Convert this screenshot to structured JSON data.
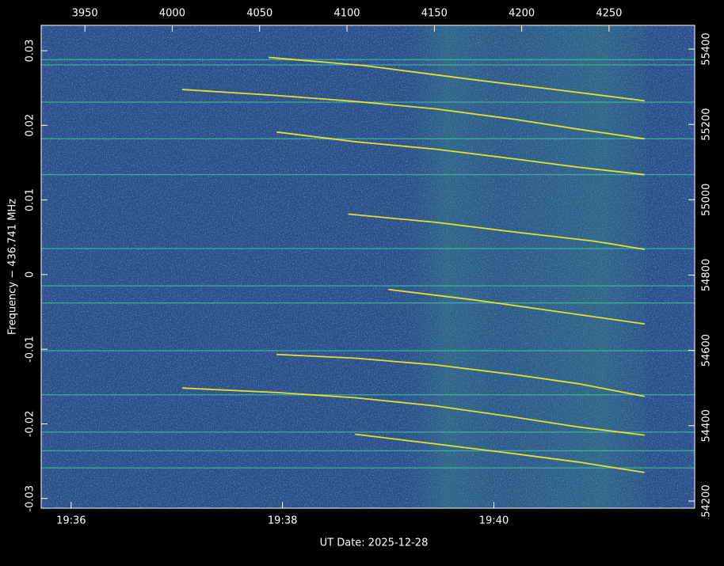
{
  "chart_data": {
    "type": "spectrogram",
    "x_label": "UT Date: 2025-12-28",
    "y_label": "Frequency − 436.741 MHz",
    "xlim": [
      70543,
      70914
    ],
    "xticks": [
      {
        "value": 70560,
        "label": "19:36"
      },
      {
        "value": 70680,
        "label": "19:38"
      },
      {
        "value": 70800,
        "label": "19:40"
      }
    ],
    "x2lim": [
      3925,
      4299
    ],
    "x2ticks": [
      3950,
      4000,
      4050,
      4100,
      4150,
      4200,
      4250
    ],
    "ylim": [
      -0.0313,
      0.0334
    ],
    "yticks": [
      -0.03,
      -0.02,
      -0.01,
      0,
      0.01,
      0.02,
      0.03
    ],
    "y2lim": [
      54181,
      55463
    ],
    "y2ticks": [
      54200,
      54400,
      54600,
      54800,
      55000,
      55200,
      55400
    ],
    "background_color": "#2b4c8a",
    "series": [
      {
        "color": "#f2ee28",
        "x_axis": "x2",
        "x": [
          4055.5,
          4110,
          4173,
          4219,
          4270
        ],
        "values": [
          0.0291,
          0.028,
          0.0261,
          0.0248,
          0.0233
        ]
      },
      {
        "color": "#f2ee28",
        "x_axis": "x2",
        "x": [
          4006,
          4060,
          4105,
          4151,
          4196,
          4232,
          4270
        ],
        "values": [
          0.0248,
          0.024,
          0.0232,
          0.0222,
          0.0208,
          0.0195,
          0.0182
        ]
      },
      {
        "color": "#f2ee28",
        "x_axis": "x2",
        "x": [
          4060,
          4105,
          4151,
          4196,
          4232,
          4270
        ],
        "values": [
          0.0191,
          0.0178,
          0.0168,
          0.0155,
          0.0144,
          0.0134
        ]
      },
      {
        "color": "#f2ee28",
        "x_axis": "x2",
        "x": [
          4101,
          4151,
          4196,
          4241,
          4270
        ],
        "values": [
          0.0081,
          0.007,
          0.0057,
          0.0045,
          0.0034
        ]
      },
      {
        "color": "#f2ee28",
        "x_axis": "x2",
        "x": [
          4124,
          4173,
          4219,
          4270
        ],
        "values": [
          -0.002,
          -0.0034,
          -0.0049,
          -0.0066
        ]
      },
      {
        "color": "#f2ee28",
        "x_axis": "x2",
        "x": [
          4060,
          4105,
          4151,
          4196,
          4232,
          4270
        ],
        "values": [
          -0.0107,
          -0.0112,
          -0.0121,
          -0.0134,
          -0.0146,
          -0.0163
        ]
      },
      {
        "color": "#f2ee28",
        "x_axis": "x2",
        "x": [
          4006,
          4060,
          4105,
          4151,
          4196,
          4232,
          4270
        ],
        "values": [
          -0.0152,
          -0.0158,
          -0.0165,
          -0.0176,
          -0.0191,
          -0.0204,
          -0.0215
        ]
      },
      {
        "color": "#f2ee28",
        "x_axis": "x2",
        "x": [
          4105,
          4151,
          4196,
          4232,
          4270
        ],
        "values": [
          -0.0214,
          -0.0227,
          -0.024,
          -0.0251,
          -0.0265
        ]
      }
    ],
    "horizontal_lines": {
      "color": "#3fbfa0",
      "values": [
        0.0288,
        0.0281,
        0.0231,
        0.0182,
        0.0134,
        0.0035,
        -0.0015,
        -0.0038,
        -0.0102,
        -0.0161,
        -0.0211,
        -0.0236,
        -0.0259
      ]
    }
  }
}
